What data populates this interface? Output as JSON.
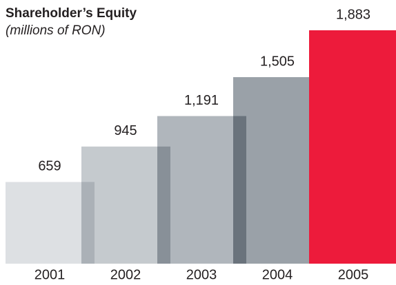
{
  "chart_data": {
    "type": "bar",
    "title": "Shareholder’s Equity",
    "subtitle": "(millions of RON)",
    "categories": [
      "2001",
      "2002",
      "2003",
      "2004",
      "2005"
    ],
    "values": [
      659,
      945,
      1191,
      1505,
      1883
    ],
    "value_labels": [
      "659",
      "945",
      "1,191",
      "1,505",
      "1,883"
    ],
    "colors": [
      "#dde0e3",
      "#c5cace",
      "#b0b6bc",
      "#9aa1a8",
      "#ed1b3b"
    ]
  }
}
